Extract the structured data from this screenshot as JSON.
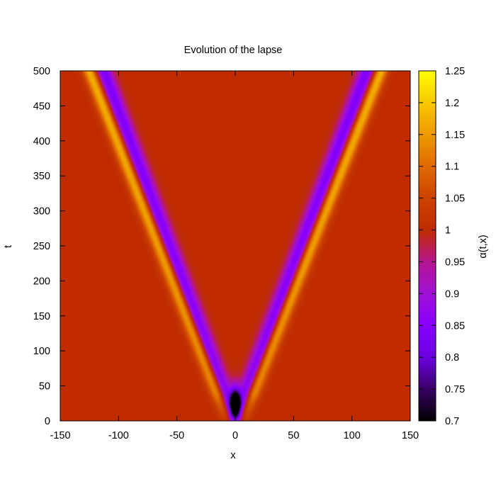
{
  "chart_data": {
    "type": "heatmap",
    "title": "Evolution of the lapse",
    "xlabel": "x",
    "ylabel": "t",
    "colorbar_label": "α(t,x)",
    "xlim": [
      -150,
      150
    ],
    "ylim": [
      0,
      500
    ],
    "zlim": [
      0.7,
      1.25
    ],
    "x_ticks": [
      "-150",
      "-100",
      "-50",
      "0",
      "50",
      "100",
      "150"
    ],
    "y_ticks": [
      "0",
      "50",
      "100",
      "150",
      "200",
      "250",
      "300",
      "350",
      "400",
      "450",
      "500"
    ],
    "colorbar_ticks": [
      "0.7",
      "0.75",
      "0.8",
      "0.85",
      "0.9",
      "0.95",
      "1",
      "1.05",
      "1.1",
      "1.15",
      "1.2",
      "1.25"
    ],
    "colormap": [
      {
        "v": 0.7,
        "color": "#000000"
      },
      {
        "v": 0.75,
        "color": "#3a0066"
      },
      {
        "v": 0.8,
        "color": "#6a00e0"
      },
      {
        "v": 0.85,
        "color": "#8a00ff"
      },
      {
        "v": 0.9,
        "color": "#a010d8"
      },
      {
        "v": 0.95,
        "color": "#b5148f"
      },
      {
        "v": 1.0,
        "color": "#c02c00"
      },
      {
        "v": 1.05,
        "color": "#cc4400"
      },
      {
        "v": 1.1,
        "color": "#e06a00"
      },
      {
        "v": 1.15,
        "color": "#ee9a00"
      },
      {
        "v": 1.2,
        "color": "#f8c800"
      },
      {
        "v": 1.25,
        "color": "#ffff00"
      }
    ],
    "background_value": 1.0,
    "features": [
      {
        "kind": "pulse",
        "x_at_t0": -6,
        "x_at_t500": -125,
        "amplitude": 1.18,
        "width": 6
      },
      {
        "kind": "pulse",
        "x_at_t0": 6,
        "x_at_t500": 125,
        "amplitude": 1.18,
        "width": 6
      },
      {
        "kind": "trough",
        "x_at_t0": 0,
        "x_at_t500": -113,
        "amplitude": 0.83,
        "width": 7
      },
      {
        "kind": "trough",
        "x_at_t0": 0,
        "x_at_t500": 113,
        "amplitude": 0.83,
        "width": 7
      },
      {
        "kind": "center_dip",
        "x": 0,
        "t": 28,
        "min_value": 0.7
      }
    ]
  }
}
